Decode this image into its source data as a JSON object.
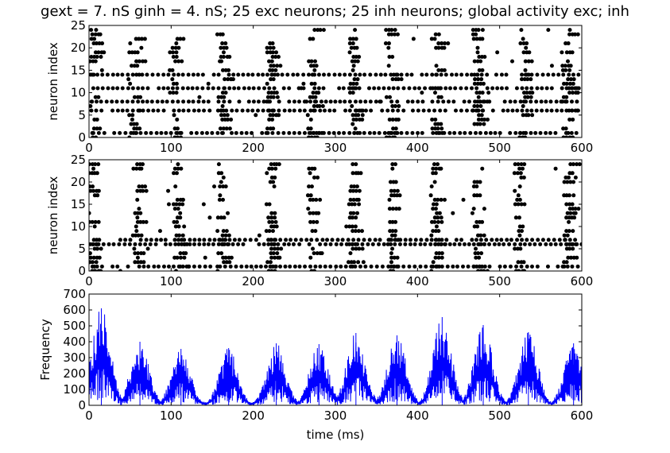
{
  "chart_data": [
    {
      "type": "scatter",
      "title": "gext = 7. nS ginh = 4. nS; 25 exc neurons; 25 inh neurons; global activity exc; inh",
      "xlabel": "",
      "ylabel": "neuron index",
      "xlim": [
        0,
        600
      ],
      "ylim": [
        0,
        25
      ],
      "x_ticks": [
        "0",
        "100",
        "200",
        "300",
        "400",
        "500",
        "600"
      ],
      "y_ticks": [
        "0",
        "5",
        "10",
        "15",
        "20",
        "25"
      ],
      "marker_color": "#000000",
      "grid": false,
      "raster": {
        "neurons": 25,
        "burst_centers_ms": [
          15,
          62,
          112,
          170,
          228,
          280,
          330,
          375,
          430,
          480,
          538,
          590
        ],
        "burst_halfwidth_ms": 14,
        "dense_rows": [
          1,
          6,
          8,
          11,
          14
        ]
      }
    },
    {
      "type": "scatter",
      "title": "",
      "xlabel": "",
      "ylabel": "neuron index",
      "xlim": [
        0,
        600
      ],
      "ylim": [
        0,
        25
      ],
      "x_ticks": [
        "0",
        "100",
        "200",
        "300",
        "400",
        "500",
        "600"
      ],
      "y_ticks": [
        "0",
        "5",
        "10",
        "15",
        "20",
        "25"
      ],
      "marker_color": "#000000",
      "grid": false,
      "raster": {
        "neurons": 25,
        "burst_centers_ms": [
          12,
          65,
          115,
          168,
          228,
          278,
          325,
          375,
          428,
          478,
          530,
          590
        ],
        "burst_halfwidth_ms": 12,
        "dense_rows": [
          1,
          6,
          7
        ]
      }
    },
    {
      "type": "line",
      "title": "",
      "xlabel": "time (ms)",
      "ylabel": "Frequency",
      "xlim": [
        0,
        600
      ],
      "ylim": [
        0,
        700
      ],
      "x_ticks": [
        "0",
        "100",
        "200",
        "300",
        "400",
        "500",
        "600"
      ],
      "y_ticks": [
        "0",
        "100",
        "200",
        "300",
        "400",
        "500",
        "600",
        "700"
      ],
      "line_color": "#0000ff",
      "grid": false,
      "series": [
        {
          "envelope_peaks": [
            {
              "x": 15,
              "y": 610
            },
            {
              "x": 62,
              "y": 400
            },
            {
              "x": 112,
              "y": 355
            },
            {
              "x": 170,
              "y": 360
            },
            {
              "x": 228,
              "y": 390
            },
            {
              "x": 280,
              "y": 385
            },
            {
              "x": 325,
              "y": 455
            },
            {
              "x": 375,
              "y": 440
            },
            {
              "x": 430,
              "y": 555
            },
            {
              "x": 480,
              "y": 505
            },
            {
              "x": 535,
              "y": 460
            },
            {
              "x": 590,
              "y": 390
            }
          ],
          "baseline": 20
        }
      ]
    }
  ]
}
